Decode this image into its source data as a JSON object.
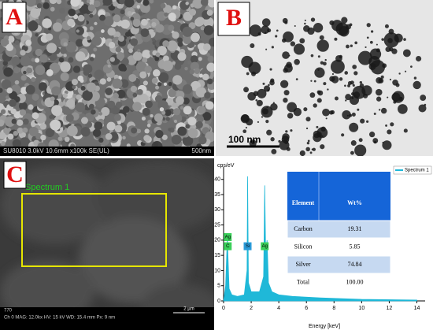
{
  "panels": {
    "a": {
      "letter": "A",
      "info": "SU8010 3.0kV 10.6mm x100k SE(UL)",
      "scale": "500nm"
    },
    "b": {
      "letter": "B",
      "scale": "100 nm"
    },
    "c": {
      "letter": "C",
      "region": "Spectrum 1",
      "scale": "2 µm",
      "info": "Ch 0  MAG: 12.0kx  HV: 15 kV  WD: 15.4 mm  Px: 9 nm",
      "id": "770"
    }
  },
  "chart_data": {
    "type": "area",
    "y_label": "cps/eV",
    "x_label": "Energy [keV]",
    "x": [
      0,
      0.15,
      0.27,
      0.4,
      0.6,
      1.0,
      1.5,
      1.7,
      1.74,
      1.8,
      2.0,
      2.6,
      2.9,
      2.98,
      3.05,
      3.15,
      3.25,
      3.5,
      4.0,
      5,
      7,
      10,
      14
    ],
    "series": [
      {
        "name": "Spectrum 1",
        "color": "#1fb8d8",
        "values": [
          0,
          5,
          21,
          4,
          2,
          1.5,
          2,
          10,
          41,
          6,
          3,
          3,
          8,
          38,
          15,
          20,
          6,
          3,
          2,
          1.5,
          1,
          0.5,
          0.3
        ]
      }
    ],
    "xlim": [
      0,
      14.6
    ],
    "ylim": [
      0,
      42
    ],
    "xticks": [
      0,
      2,
      4,
      6,
      8,
      10,
      12,
      14
    ],
    "yticks": [
      0,
      5,
      10,
      15,
      20,
      25,
      30,
      35,
      40
    ],
    "annotations": [
      {
        "label": "Ag",
        "x": 0.3,
        "y": 21
      },
      {
        "label": "C",
        "x": 0.3,
        "y": 18
      },
      {
        "label": "Si",
        "x": 1.74,
        "y": 18
      },
      {
        "label": "Ag",
        "x": 2.98,
        "y": 18
      }
    ]
  },
  "table": {
    "header": [
      "Element",
      "Wt%"
    ],
    "rows": [
      [
        "Carbon",
        "19.31"
      ],
      [
        "Silicon",
        "5.85"
      ],
      [
        "Silver",
        "74.84"
      ],
      [
        "Total",
        "100.00"
      ]
    ]
  }
}
